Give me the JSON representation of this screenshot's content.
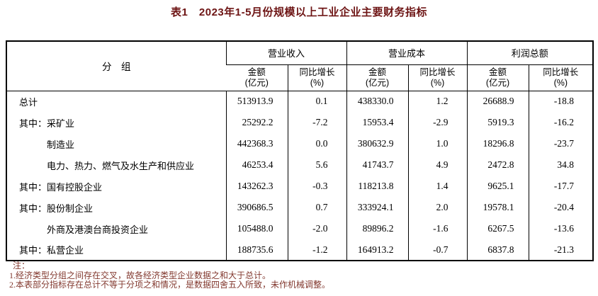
{
  "title": "表1　2023年1-5月份规模以上工业企业主要财务指标",
  "colors": {
    "color-title": "#6d1414",
    "color-notes": "#82382e",
    "color-border": "#000000",
    "color-text": "#000000",
    "color-bg": "#ffffff"
  },
  "table": {
    "group_header": "分　组",
    "col_groups": [
      {
        "label": "营业收入"
      },
      {
        "label": "营业成本"
      },
      {
        "label": "利润总额"
      }
    ],
    "sub_headers": {
      "amount_line1": "金额",
      "amount_line2": "(亿元)",
      "growth_line1": "同比增长",
      "growth_line2": "(%)"
    },
    "rows": [
      {
        "label": "总计",
        "indent": false,
        "values": [
          "513913.9",
          "0.1",
          "438330.0",
          "1.2",
          "26688.9",
          "-18.8"
        ]
      },
      {
        "label": "其中：采矿业",
        "indent": false,
        "values": [
          "25292.2",
          "-7.2",
          "15953.4",
          "-2.9",
          "5919.3",
          "-16.2"
        ]
      },
      {
        "label": "制造业",
        "indent": true,
        "values": [
          "442368.3",
          "0.0",
          "380632.9",
          "1.0",
          "18296.8",
          "-23.7"
        ]
      },
      {
        "label": "电力、热力、燃气及水生产和供应业",
        "indent": true,
        "values": [
          "46253.4",
          "5.6",
          "41743.7",
          "4.9",
          "2472.8",
          "34.8"
        ]
      },
      {
        "label": "其中：国有控股企业",
        "indent": false,
        "values": [
          "143262.3",
          "-0.3",
          "118213.8",
          "1.4",
          "9625.1",
          "-17.7"
        ]
      },
      {
        "label": "其中：股份制企业",
        "indent": false,
        "values": [
          "390686.5",
          "0.7",
          "333924.1",
          "2.0",
          "19578.1",
          "-20.4"
        ]
      },
      {
        "label": "外商及港澳台商投资企业",
        "indent": true,
        "values": [
          "105488.0",
          "-2.0",
          "89896.2",
          "-1.6",
          "6267.5",
          "-13.6"
        ]
      },
      {
        "label": "其中：私营企业",
        "indent": false,
        "values": [
          "188735.6",
          "-1.2",
          "164913.2",
          "-0.7",
          "6837.8",
          "-21.3"
        ]
      }
    ]
  },
  "notes": {
    "heading": "注：",
    "items": [
      "1.经济类型分组之间存在交叉，故各经济类型企业数据之和大于总计。",
      "2.本表部分指标存在总计不等于分项之和情况，是数据四舍五入所致，未作机械调整。"
    ]
  }
}
